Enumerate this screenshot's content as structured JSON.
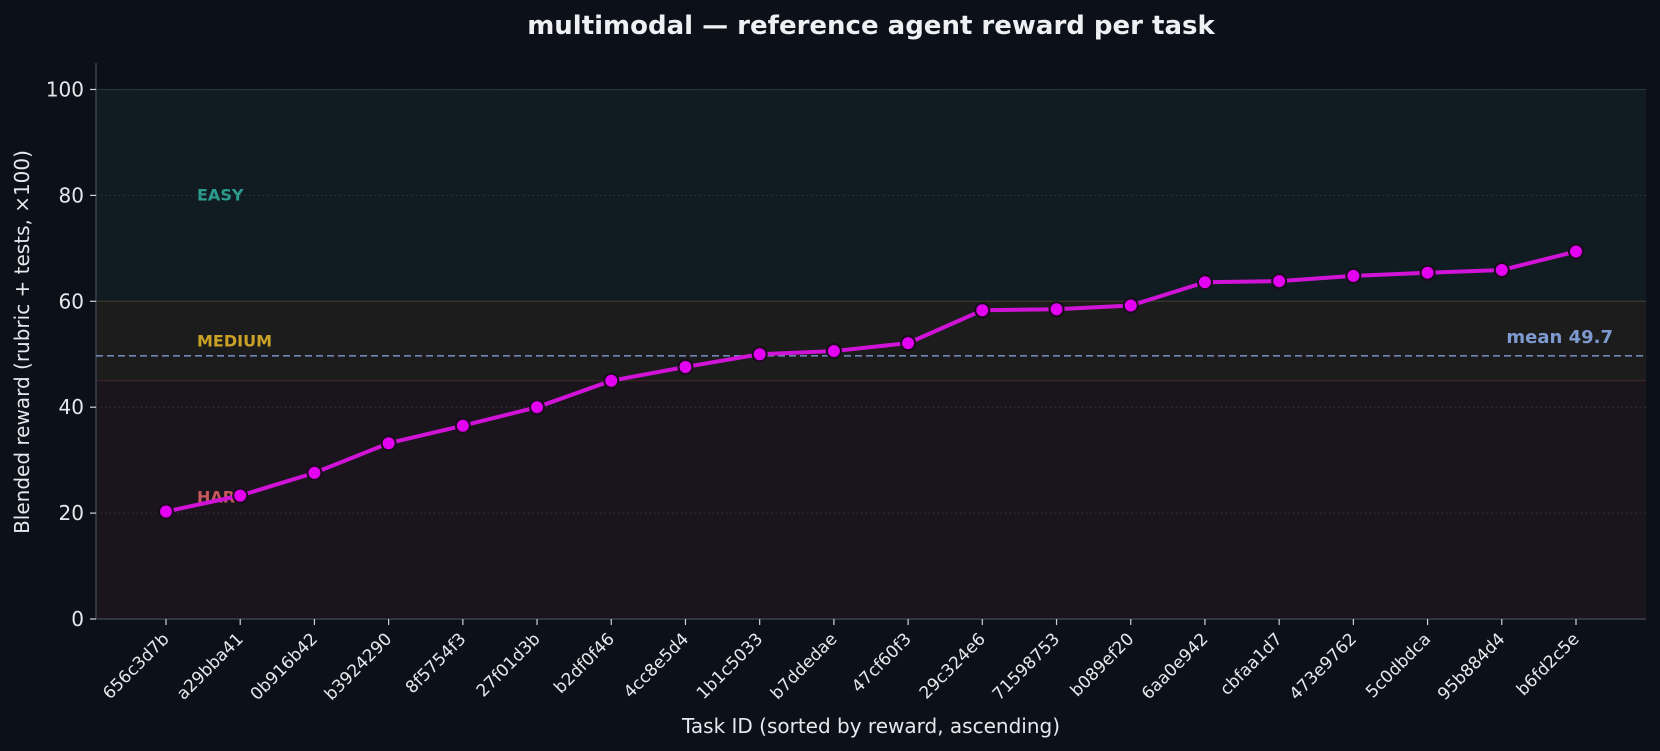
{
  "colors": {
    "background": "#0c1018",
    "easy_band": "#111c22",
    "medium_band": "#1b1c1b",
    "hard_band": "#1a151d",
    "easy_text": "#2a9d8f",
    "medium_text": "#c9a227",
    "hard_text": "#c65a5a",
    "line": "#d113d8",
    "marker_fill": "#e400f0",
    "marker_edge": "#1a0a1e",
    "mean": "#7f9ad1",
    "axis": "#3a4150"
  },
  "chart_data": {
    "type": "line",
    "title": "multimodal — reference agent reward per task",
    "xlabel": "Task ID (sorted by reward, ascending)",
    "ylabel": "Blended reward (rubric + tests, ×100)",
    "ylim": [
      0,
      105
    ],
    "yticks": [
      0,
      20,
      40,
      60,
      80,
      100
    ],
    "grid": "dotted horizontal",
    "categories": [
      "656c3d7b",
      "a29bba41",
      "0b916b42",
      "b3924290",
      "8f5754f3",
      "27f01d3b",
      "b2df0f46",
      "4cc8e5d4",
      "1b1c5033",
      "b7ddedae",
      "47cf60f3",
      "29c324e6",
      "71598753",
      "b089ef20",
      "6aa0e942",
      "cbfaa1d7",
      "473e9762",
      "5c0dbdca",
      "95b884d4",
      "b6fd2c5e"
    ],
    "values": [
      20.3,
      23.3,
      27.6,
      33.2,
      36.5,
      40.0,
      45.0,
      47.6,
      50.0,
      50.6,
      52.1,
      58.3,
      58.5,
      59.2,
      63.6,
      63.8,
      64.8,
      65.4,
      65.9,
      69.4
    ],
    "bands": [
      {
        "label": "EASY",
        "from": 60,
        "to": 100
      },
      {
        "label": "MEDIUM",
        "from": 45,
        "to": 60
      },
      {
        "label": "HARD",
        "from": 0,
        "to": 45
      }
    ],
    "mean": {
      "value": 49.7,
      "label": "mean 49.7"
    }
  }
}
